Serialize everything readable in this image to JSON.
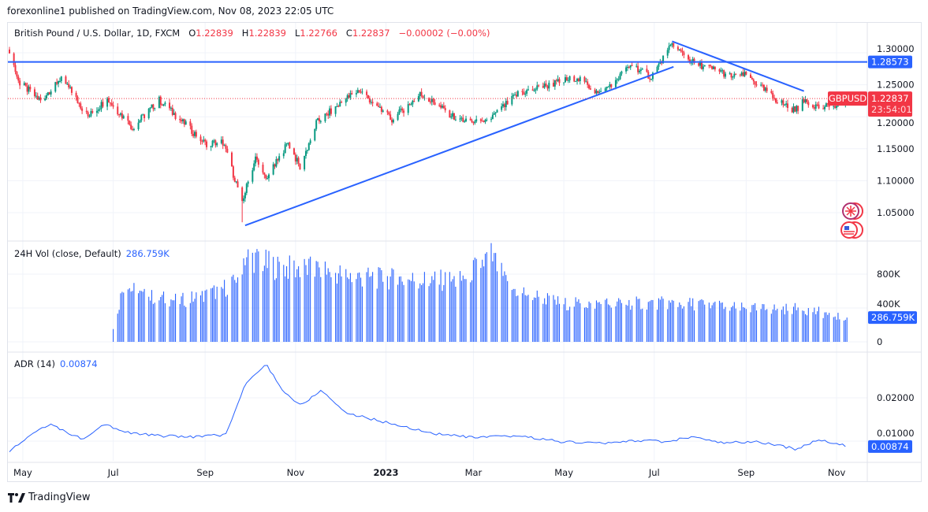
{
  "header": {
    "published": "forexonline1 published on TradingView.com, Nov 08, 2023 22:05 UTC"
  },
  "legend": {
    "symbol": "British Pound / U.S. Dollar, 1D, FXCM",
    "o_label": "O",
    "o": "1.22839",
    "h_label": "H",
    "h": "1.22839",
    "l_label": "L",
    "l": "1.22766",
    "c_label": "C",
    "c": "1.22837",
    "change": "−0.00002 (−0.00%)"
  },
  "volume_pane": {
    "title": "24H Vol (close, Default)",
    "value": "286.759K"
  },
  "adr_pane": {
    "title": "ADR (14)",
    "value": "0.00874"
  },
  "footer": {
    "brand": "TradingView"
  },
  "colors": {
    "up": "#089981",
    "down": "#f23645",
    "accent": "#2962ff"
  },
  "chart_data": [
    {
      "type": "candlestick",
      "symbol": "GBPUSD",
      "interval": "1D",
      "price_labels": {
        "hline": "1.28573",
        "last": "1.22837",
        "countdown": "23:54:01",
        "symbol_tag": "GBPUSD"
      },
      "y_ticks": [
        "1.30000",
        "1.25000",
        "1.20000",
        "1.15000",
        "1.10000",
        "1.05000"
      ],
      "ylim": [
        1.02,
        1.32
      ],
      "x_ticks": [
        {
          "label": "May",
          "date": "2022-05-01"
        },
        {
          "label": "Jul",
          "date": "2022-07-01"
        },
        {
          "label": "Sep",
          "date": "2022-09-01"
        },
        {
          "label": "Nov",
          "date": "2022-11-01"
        },
        {
          "label": "2023",
          "date": "2023-01-01"
        },
        {
          "label": "Mar",
          "date": "2023-03-01"
        },
        {
          "label": "May",
          "date": "2023-05-01"
        },
        {
          "label": "Jul",
          "date": "2023-07-01"
        },
        {
          "label": "Sep",
          "date": "2023-09-01"
        },
        {
          "label": "Nov",
          "date": "2023-11-01"
        }
      ],
      "close_anchors": [
        [
          "2022-04-22",
          1.305
        ],
        [
          "2022-04-28",
          1.255
        ],
        [
          "2022-05-13",
          1.225
        ],
        [
          "2022-05-27",
          1.262
        ],
        [
          "2022-06-14",
          1.2
        ],
        [
          "2022-06-27",
          1.228
        ],
        [
          "2022-07-14",
          1.183
        ],
        [
          "2022-08-01",
          1.226
        ],
        [
          "2022-08-23",
          1.178
        ],
        [
          "2022-09-01",
          1.158
        ],
        [
          "2022-09-13",
          1.16
        ],
        [
          "2022-09-26",
          1.068
        ],
        [
          "2022-10-05",
          1.135
        ],
        [
          "2022-10-12",
          1.1
        ],
        [
          "2022-10-27",
          1.16
        ],
        [
          "2022-11-04",
          1.12
        ],
        [
          "2022-11-15",
          1.19
        ],
        [
          "2022-12-05",
          1.228
        ],
        [
          "2022-12-14",
          1.242
        ],
        [
          "2023-01-05",
          1.195
        ],
        [
          "2023-01-24",
          1.235
        ],
        [
          "2023-02-02",
          1.222
        ],
        [
          "2023-02-17",
          1.198
        ],
        [
          "2023-03-08",
          1.188
        ],
        [
          "2023-03-31",
          1.236
        ],
        [
          "2023-04-14",
          1.245
        ],
        [
          "2023-05-10",
          1.262
        ],
        [
          "2023-05-25",
          1.235
        ],
        [
          "2023-06-16",
          1.281
        ],
        [
          "2023-06-29",
          1.262
        ],
        [
          "2023-07-13",
          1.312
        ],
        [
          "2023-07-27",
          1.285
        ],
        [
          "2023-08-15",
          1.27
        ],
        [
          "2023-08-24",
          1.262
        ],
        [
          "2023-09-01",
          1.265
        ],
        [
          "2023-09-22",
          1.225
        ],
        [
          "2023-10-04",
          1.21
        ],
        [
          "2023-10-11",
          1.226
        ],
        [
          "2023-10-20",
          1.215
        ],
        [
          "2023-11-01",
          1.215
        ],
        [
          "2023-11-08",
          1.22837
        ]
      ],
      "drawings": {
        "hline": 1.28573,
        "uptrend": [
          [
            "2022-09-28",
            1.03
          ],
          [
            "2023-07-14",
            1.278
          ]
        ],
        "downtrend": [
          [
            "2023-07-13",
            1.318
          ],
          [
            "2023-10-10",
            1.24
          ]
        ]
      }
    },
    {
      "type": "bar",
      "name": "24H Vol (close, Default)",
      "y_ticks": [
        "800K",
        "400K",
        "0"
      ],
      "ylim": [
        0,
        1050000
      ],
      "anchors": [
        [
          "2022-07-01",
          150000
        ],
        [
          "2022-07-08",
          700000
        ],
        [
          "2022-07-20",
          560000
        ],
        [
          "2022-08-15",
          500000
        ],
        [
          "2022-09-01",
          560000
        ],
        [
          "2022-09-20",
          700000
        ],
        [
          "2022-09-28",
          1050000
        ],
        [
          "2022-10-20",
          900000
        ],
        [
          "2022-11-15",
          880000
        ],
        [
          "2022-12-15",
          780000
        ],
        [
          "2023-01-20",
          750000
        ],
        [
          "2023-02-20",
          740000
        ],
        [
          "2023-03-13",
          1050000
        ],
        [
          "2023-03-25",
          650000
        ],
        [
          "2023-05-01",
          460000
        ],
        [
          "2023-07-01",
          470000
        ],
        [
          "2023-08-01",
          460000
        ],
        [
          "2023-09-01",
          400000
        ],
        [
          "2023-10-10",
          400000
        ],
        [
          "2023-11-08",
          286759
        ]
      ]
    },
    {
      "type": "line",
      "name": "ADR (14)",
      "y_ticks": [
        "0.02000",
        "0.01000"
      ],
      "ylim": [
        0.006,
        0.03
      ],
      "values": [
        [
          "2022-04-22",
          0.0075
        ],
        [
          "2022-05-10",
          0.0125
        ],
        [
          "2022-05-20",
          0.0137
        ],
        [
          "2022-06-10",
          0.0105
        ],
        [
          "2022-06-25",
          0.014
        ],
        [
          "2022-07-10",
          0.012
        ],
        [
          "2022-08-01",
          0.0112
        ],
        [
          "2022-08-25",
          0.011
        ],
        [
          "2022-09-15",
          0.0115
        ],
        [
          "2022-09-28",
          0.023
        ],
        [
          "2022-10-12",
          0.0278
        ],
        [
          "2022-10-25",
          0.021
        ],
        [
          "2022-11-05",
          0.0182
        ],
        [
          "2022-11-18",
          0.0218
        ],
        [
          "2022-12-05",
          0.0165
        ],
        [
          "2023-01-05",
          0.014
        ],
        [
          "2023-02-01",
          0.0118
        ],
        [
          "2023-03-01",
          0.0108
        ],
        [
          "2023-04-01",
          0.0112
        ],
        [
          "2023-05-01",
          0.0098
        ],
        [
          "2023-06-01",
          0.0095
        ],
        [
          "2023-06-20",
          0.0102
        ],
        [
          "2023-07-10",
          0.0098
        ],
        [
          "2023-07-25",
          0.011
        ],
        [
          "2023-08-15",
          0.0096
        ],
        [
          "2023-09-10",
          0.0098
        ],
        [
          "2023-10-04",
          0.0082
        ],
        [
          "2023-10-20",
          0.0102
        ],
        [
          "2023-11-01",
          0.0095
        ],
        [
          "2023-11-08",
          0.00874
        ]
      ]
    }
  ]
}
